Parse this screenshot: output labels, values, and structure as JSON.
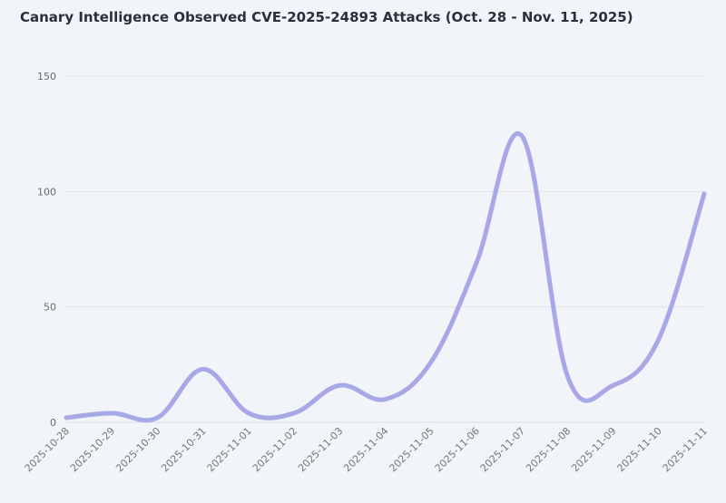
{
  "title": "Canary Intelligence Observed CVE-2025-24893 Attacks (Oct. 28 - Nov. 11, 2025)",
  "chart_data": {
    "type": "line",
    "title": "Canary Intelligence Observed CVE-2025-24893 Attacks (Oct. 28 - Nov. 11, 2025)",
    "xlabel": "",
    "ylabel": "",
    "categories": [
      "2025-10-28",
      "2025-10-29",
      "2025-10-30",
      "2025-10-31",
      "2025-11-01",
      "2025-11-02",
      "2025-11-03",
      "2025-11-04",
      "2025-11-05",
      "2025-11-06",
      "2025-11-07",
      "2025-11-08",
      "2025-11-09",
      "2025-11-10",
      "2025-11-11"
    ],
    "series": [
      {
        "name": "Attacks",
        "color": "#a7a8e6",
        "values": [
          2,
          4,
          2,
          23,
          4,
          4,
          16,
          10,
          26,
          69,
          124,
          20,
          16,
          36,
          99
        ]
      }
    ],
    "ylim": [
      0,
      150
    ],
    "yticks": [
      0,
      50,
      100,
      150
    ],
    "grid": true,
    "legend": "none"
  }
}
